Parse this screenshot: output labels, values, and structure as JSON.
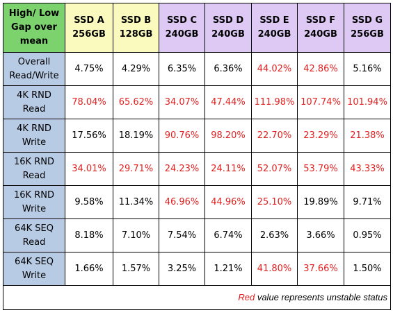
{
  "table": {
    "corner_label": [
      "High/ Low",
      "Gap over",
      "mean"
    ],
    "columns": [
      {
        "line1": "SSD A",
        "line2": "256GB",
        "group": "ab"
      },
      {
        "line1": "SSD B",
        "line2": "128GB",
        "group": "ab"
      },
      {
        "line1": "SSD C",
        "line2": "240GB",
        "group": "cg"
      },
      {
        "line1": "SSD D",
        "line2": "240GB",
        "group": "cg"
      },
      {
        "line1": "SSD E",
        "line2": "240GB",
        "group": "cg"
      },
      {
        "line1": "SSD F",
        "line2": "240GB",
        "group": "cg"
      },
      {
        "line1": "SSD G",
        "line2": "256GB",
        "group": "cg"
      }
    ],
    "rows": [
      {
        "label": [
          "Overall",
          "Read/Write"
        ],
        "cells": [
          {
            "value": "4.75%",
            "status": "stable"
          },
          {
            "value": "4.29%",
            "status": "stable"
          },
          {
            "value": "6.35%",
            "status": "stable"
          },
          {
            "value": "6.36%",
            "status": "stable"
          },
          {
            "value": "44.02%",
            "status": "unstable"
          },
          {
            "value": "42.86%",
            "status": "unstable"
          },
          {
            "value": "5.16%",
            "status": "stable"
          }
        ]
      },
      {
        "label": [
          "4K RND Read"
        ],
        "cells": [
          {
            "value": "78.04%",
            "status": "unstable"
          },
          {
            "value": "65.62%",
            "status": "unstable"
          },
          {
            "value": "34.07%",
            "status": "unstable"
          },
          {
            "value": "47.44%",
            "status": "unstable"
          },
          {
            "value": "111.98%",
            "status": "unstable"
          },
          {
            "value": "107.74%",
            "status": "unstable"
          },
          {
            "value": "101.94%",
            "status": "unstable"
          }
        ]
      },
      {
        "label": [
          "4K RND",
          "Write"
        ],
        "cells": [
          {
            "value": "17.56%",
            "status": "stable"
          },
          {
            "value": "18.19%",
            "status": "stable"
          },
          {
            "value": "90.76%",
            "status": "unstable"
          },
          {
            "value": "98.20%",
            "status": "unstable"
          },
          {
            "value": "22.70%",
            "status": "unstable"
          },
          {
            "value": "23.29%",
            "status": "unstable"
          },
          {
            "value": "21.38%",
            "status": "unstable"
          }
        ]
      },
      {
        "label": [
          "16K RND",
          "Read"
        ],
        "cells": [
          {
            "value": "34.01%",
            "status": "unstable"
          },
          {
            "value": "29.71%",
            "status": "unstable"
          },
          {
            "value": "24.23%",
            "status": "unstable"
          },
          {
            "value": "24.11%",
            "status": "unstable"
          },
          {
            "value": "52.07%",
            "status": "unstable"
          },
          {
            "value": "53.79%",
            "status": "unstable"
          },
          {
            "value": "43.33%",
            "status": "unstable"
          }
        ]
      },
      {
        "label": [
          "16K RND",
          "Write"
        ],
        "cells": [
          {
            "value": "9.58%",
            "status": "stable"
          },
          {
            "value": "11.34%",
            "status": "stable"
          },
          {
            "value": "46.96%",
            "status": "unstable"
          },
          {
            "value": "44.96%",
            "status": "unstable"
          },
          {
            "value": "25.10%",
            "status": "unstable"
          },
          {
            "value": "19.89%",
            "status": "stable"
          },
          {
            "value": "9.71%",
            "status": "stable"
          }
        ]
      },
      {
        "label": [
          "64K SEQ",
          "Read"
        ],
        "cells": [
          {
            "value": "8.18%",
            "status": "stable"
          },
          {
            "value": "7.10%",
            "status": "stable"
          },
          {
            "value": "7.54%",
            "status": "stable"
          },
          {
            "value": "6.74%",
            "status": "stable"
          },
          {
            "value": "2.63%",
            "status": "stable"
          },
          {
            "value": "3.66%",
            "status": "stable"
          },
          {
            "value": "0.95%",
            "status": "stable"
          }
        ]
      },
      {
        "label": [
          "64K SEQ",
          "Write"
        ],
        "cells": [
          {
            "value": "1.66%",
            "status": "stable"
          },
          {
            "value": "1.57%",
            "status": "stable"
          },
          {
            "value": "3.25%",
            "status": "stable"
          },
          {
            "value": "1.21%",
            "status": "stable"
          },
          {
            "value": "41.80%",
            "status": "unstable"
          },
          {
            "value": "37.66%",
            "status": "unstable"
          },
          {
            "value": "1.50%",
            "status": "stable"
          }
        ]
      }
    ]
  },
  "footer": {
    "red_word": "Red",
    "rest": " value represents unstable status"
  },
  "colors": {
    "corner_bg": "#7cd36e",
    "header_ab_bg": "#fafabf",
    "header_cg_bg": "#ddc9f4",
    "row_label_bg": "#b8cbe5",
    "unstable_text": "#e12121",
    "stable_text": "#000000"
  }
}
